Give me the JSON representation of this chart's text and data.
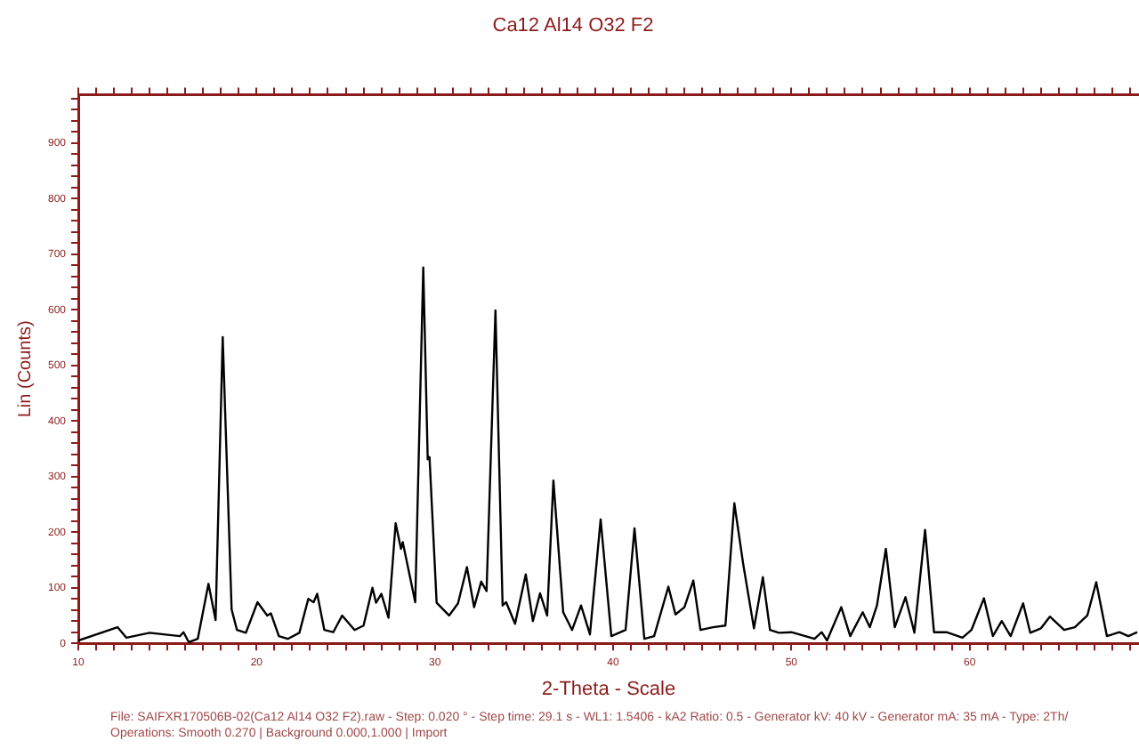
{
  "chart_data": {
    "type": "line",
    "title": "Ca12 Al14 O32 F2",
    "xlabel": "2-Theta - Scale",
    "ylabel": "Lin (Counts)",
    "annotations": [
      "File: SAIFXR170506B-02(Ca12 Al14 O32 F2).raw - Step: 0.020 ° - Step time: 29.1 s - WL1: 1.5406 - kA2 Ratio: 0.5 - Generator kV: 40 kV - Generator mA: 35 mA - Type: 2Th/",
      "Operations: Smooth 0.270 | Background 0.000,1.000 | Import"
    ],
    "xlim": [
      10,
      69.5
    ],
    "ylim": [
      0,
      987
    ],
    "xticks": [
      10,
      {
        "value": 11,
        "label": null
      },
      {
        "value": 12,
        "label": null
      },
      {
        "value": 13,
        "label": null
      },
      {
        "value": 14,
        "label": null
      },
      {
        "value": 15,
        "label": null
      },
      {
        "value": 16,
        "label": null
      },
      {
        "value": 17,
        "label": null
      },
      {
        "value": 18,
        "label": null
      },
      {
        "value": 19,
        "label": null
      },
      20,
      {
        "value": 21,
        "label": null
      },
      {
        "value": 22,
        "label": null
      },
      {
        "value": 23,
        "label": null
      },
      {
        "value": 24,
        "label": null
      },
      {
        "value": 25,
        "label": null
      },
      {
        "value": 26,
        "label": null
      },
      {
        "value": 27,
        "label": null
      },
      {
        "value": 28,
        "label": null
      },
      {
        "value": 29,
        "label": null
      },
      30,
      {
        "value": 31,
        "label": null
      },
      {
        "value": 32,
        "label": null
      },
      {
        "value": 33,
        "label": null
      },
      {
        "value": 34,
        "label": null
      },
      {
        "value": 35,
        "label": null
      },
      {
        "value": 36,
        "label": null
      },
      {
        "value": 37,
        "label": null
      },
      {
        "value": 38,
        "label": null
      },
      {
        "value": 39,
        "label": null
      },
      40,
      {
        "value": 41,
        "label": null
      },
      {
        "value": 42,
        "label": null
      },
      {
        "value": 43,
        "label": null
      },
      {
        "value": 44,
        "label": null
      },
      {
        "value": 45,
        "label": null
      },
      {
        "value": 46,
        "label": null
      },
      {
        "value": 47,
        "label": null
      },
      {
        "value": 48,
        "label": null
      },
      {
        "value": 49,
        "label": null
      },
      50,
      {
        "value": 51,
        "label": null
      },
      {
        "value": 52,
        "label": null
      },
      {
        "value": 53,
        "label": null
      },
      {
        "value": 54,
        "label": null
      },
      {
        "value": 55,
        "label": null
      },
      {
        "value": 56,
        "label": null
      },
      {
        "value": 57,
        "label": null
      },
      {
        "value": 58,
        "label": null
      },
      {
        "value": 59,
        "label": null
      },
      60,
      {
        "value": 61,
        "label": null
      },
      {
        "value": 62,
        "label": null
      },
      {
        "value": 63,
        "label": null
      },
      {
        "value": 64,
        "label": null
      },
      {
        "value": 65,
        "label": null
      },
      {
        "value": 66,
        "label": null
      },
      {
        "value": 67,
        "label": null
      },
      {
        "value": 68,
        "label": null
      },
      {
        "value": 69,
        "label": null
      }
    ],
    "yticks": [
      0,
      {
        "value": 20,
        "label": null
      },
      {
        "value": 40,
        "label": null
      },
      {
        "value": 60,
        "label": null
      },
      {
        "value": 80,
        "label": null
      },
      100,
      {
        "value": 120,
        "label": null
      },
      {
        "value": 140,
        "label": null
      },
      {
        "value": 160,
        "label": null
      },
      {
        "value": 180,
        "label": null
      },
      200,
      {
        "value": 220,
        "label": null
      },
      {
        "value": 240,
        "label": null
      },
      {
        "value": 260,
        "label": null
      },
      {
        "value": 280,
        "label": null
      },
      300,
      {
        "value": 320,
        "label": null
      },
      {
        "value": 340,
        "label": null
      },
      {
        "value": 360,
        "label": null
      },
      {
        "value": 380,
        "label": null
      },
      400,
      {
        "value": 420,
        "label": null
      },
      {
        "value": 440,
        "label": null
      },
      {
        "value": 460,
        "label": null
      },
      {
        "value": 480,
        "label": null
      },
      500,
      {
        "value": 520,
        "label": null
      },
      {
        "value": 540,
        "label": null
      },
      {
        "value": 560,
        "label": null
      },
      {
        "value": 580,
        "label": null
      },
      600,
      {
        "value": 620,
        "label": null
      },
      {
        "value": 640,
        "label": null
      },
      {
        "value": 660,
        "label": null
      },
      {
        "value": 680,
        "label": null
      },
      700,
      {
        "value": 720,
        "label": null
      },
      {
        "value": 740,
        "label": null
      },
      {
        "value": 760,
        "label": null
      },
      {
        "value": 780,
        "label": null
      },
      800,
      {
        "value": 820,
        "label": null
      },
      {
        "value": 840,
        "label": null
      },
      {
        "value": 860,
        "label": null
      },
      {
        "value": 880,
        "label": null
      },
      900,
      {
        "value": 920,
        "label": null
      },
      {
        "value": 940,
        "label": null
      },
      {
        "value": 960,
        "label": null
      },
      {
        "value": 980,
        "label": null
      }
    ],
    "grid": false,
    "legend": false,
    "marker": "none",
    "line_style": "solid",
    "series": [
      {
        "color": "#000000",
        "x": [
          10,
          12.2,
          12.7,
          14.0,
          15.7,
          15.9,
          16.2,
          16.7,
          17.3,
          17.7,
          18.1,
          18.6,
          18.9,
          19.4,
          20.05,
          20.6,
          20.8,
          21.25,
          21.75,
          22.4,
          22.9,
          23.2,
          23.4,
          23.8,
          24.3,
          24.8,
          25.5,
          26.0,
          26.5,
          26.7,
          27.0,
          27.4,
          27.8,
          28.1,
          28.2,
          28.9,
          29.35,
          29.6,
          29.7,
          30.1,
          30.8,
          31.3,
          31.8,
          32.2,
          32.6,
          32.9,
          33.4,
          33.8,
          34.0,
          34.5,
          35.1,
          35.5,
          35.9,
          36.3,
          36.65,
          37.2,
          37.7,
          38.2,
          38.7,
          39.3,
          39.9,
          40.7,
          41.2,
          41.75,
          42.3,
          43.1,
          43.5,
          44.0,
          44.5,
          44.9,
          45.6,
          46.3,
          46.8,
          47.3,
          47.9,
          48.4,
          48.8,
          49.3,
          50.0,
          51.3,
          51.7,
          52.0,
          52.8,
          53.3,
          54.0,
          54.4,
          54.8,
          55.3,
          55.8,
          56.4,
          56.9,
          57.5,
          58.0,
          58.7,
          59.6,
          60.1,
          60.8,
          61.3,
          61.8,
          62.3,
          63.0,
          63.4,
          64.0,
          64.5,
          65.3,
          65.9,
          66.6,
          67.1,
          67.7,
          68.4,
          68.9,
          69.4
        ],
        "values": [
          5,
          29,
          10,
          19,
          13,
          20,
          2,
          8,
          107,
          42,
          551,
          61,
          24,
          19,
          74,
          50,
          54,
          13,
          8,
          19,
          80,
          74,
          89,
          24,
          20,
          50,
          24,
          32,
          100,
          73,
          89,
          46,
          216,
          170,
          182,
          74,
          676,
          331,
          335,
          73,
          50,
          72,
          137,
          65,
          111,
          94,
          599,
          68,
          74,
          35,
          124,
          40,
          90,
          50,
          293,
          56,
          24,
          68,
          16,
          223,
          13,
          24,
          207,
          8,
          13,
          102,
          52,
          65,
          113,
          24,
          29,
          32,
          252,
          142,
          27,
          119,
          24,
          19,
          20,
          8,
          20,
          5,
          65,
          13,
          56,
          29,
          68,
          170,
          29,
          83,
          19,
          204,
          20,
          20,
          10,
          24,
          81,
          13,
          40,
          13,
          72,
          19,
          27,
          48,
          24,
          29,
          50,
          110,
          13,
          20,
          13,
          20
        ]
      }
    ]
  }
}
